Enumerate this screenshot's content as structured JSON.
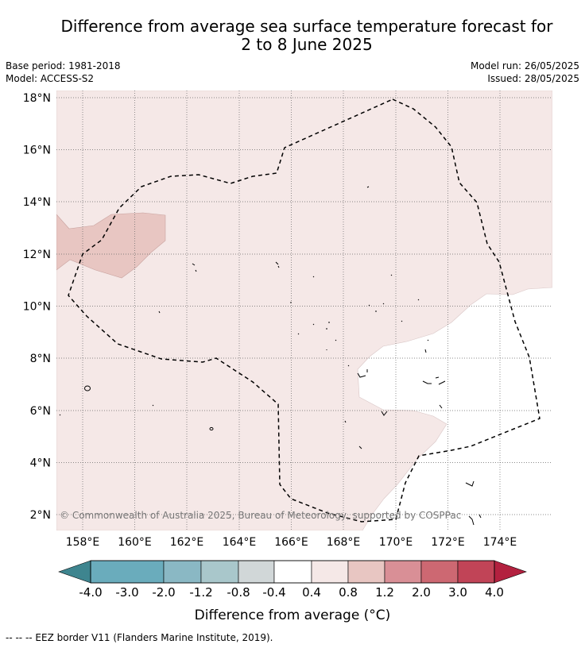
{
  "title": {
    "line1": "Difference from average sea surface temperature forecast for",
    "line2": "2 to 8 June 2025"
  },
  "meta": {
    "base_period": "Base period: 1981-2018",
    "model": "Model: ACCESS-S2",
    "model_run": "Model run: 26/05/2025",
    "issued": "Issued: 28/05/2025"
  },
  "map": {
    "lat_labels": [
      "18°N",
      "16°N",
      "14°N",
      "12°N",
      "10°N",
      "8°N",
      "6°N",
      "4°N",
      "2°N"
    ],
    "lon_labels": [
      "158°E",
      "160°E",
      "162°E",
      "164°E",
      "166°E",
      "168°E",
      "170°E",
      "172°E",
      "174°E"
    ],
    "copyright": "© Commonwealth of Australia 2025, Bureau of Meteorology, supported by COSPPac"
  },
  "colorbar": {
    "tick_labels": [
      "-4.0",
      "-3.0",
      "-2.0",
      "-1.2",
      "-0.8",
      "-0.4",
      "0.4",
      "0.8",
      "1.2",
      "2.0",
      "3.0",
      "4.0"
    ],
    "colors": [
      "#4aa2b3",
      "#6aacbc",
      "#8ab8c4",
      "#a9c7cb",
      "#d1d7d8",
      "#ffffff",
      "#f5e8e7",
      "#e8c6c2",
      "#d98f96",
      "#cd6872",
      "#c14457"
    ],
    "under_color": "#3e858f",
    "over_color": "#b3213f",
    "label": "Difference from average (°C)"
  },
  "legend_note": "--  --  -- EEZ border V11 (Flanders Marine Institute, 2019)."
}
